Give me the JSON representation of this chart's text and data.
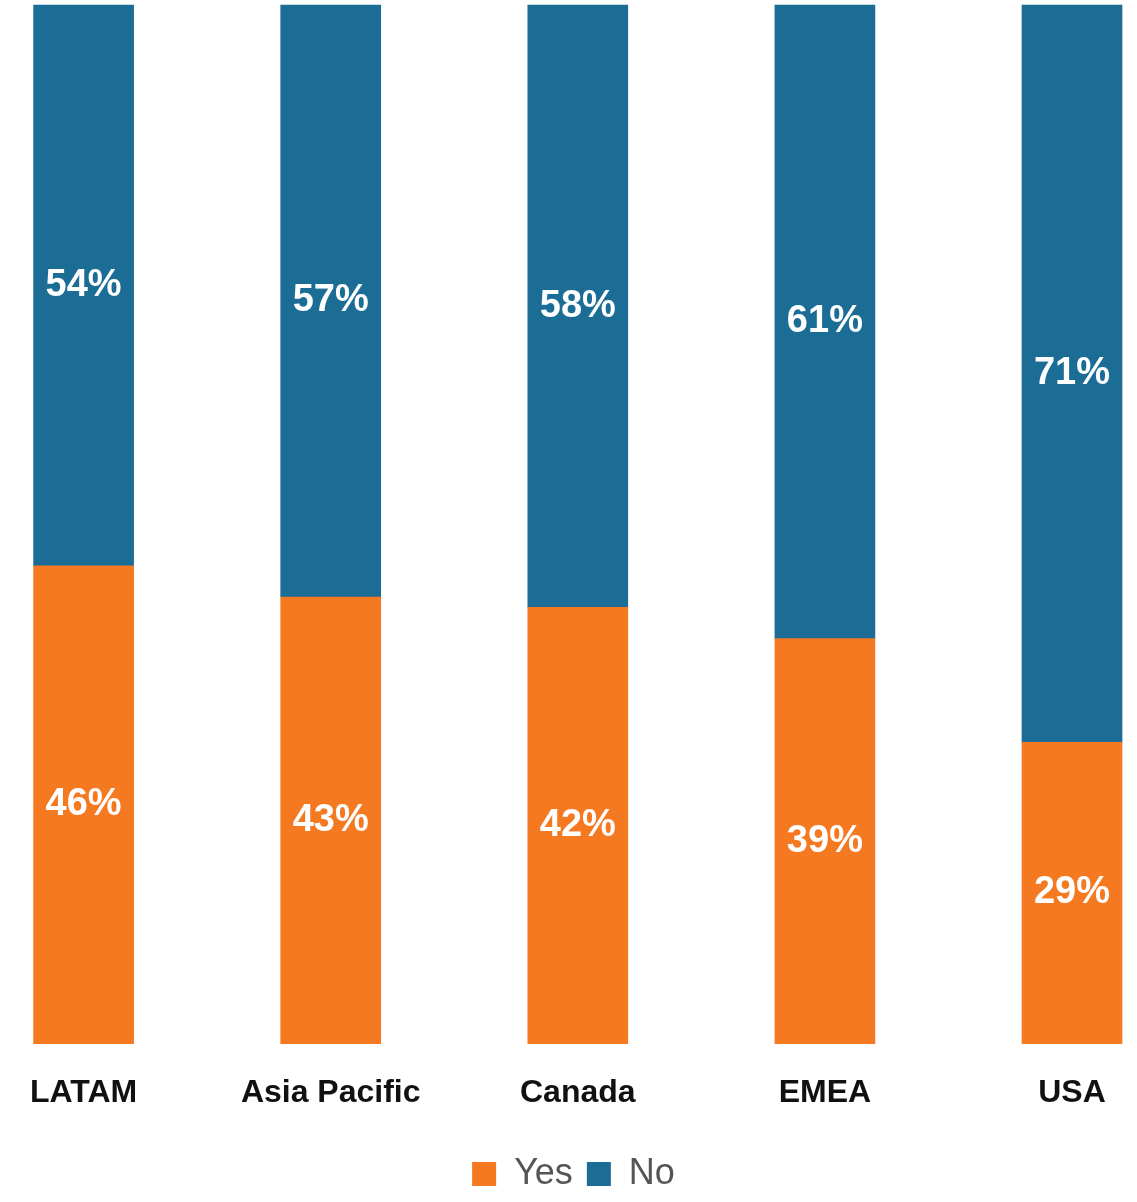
{
  "chart_data": {
    "type": "bar",
    "stacked": true,
    "categories": [
      "LATAM",
      "Asia Pacific",
      "Canada",
      "EMEA",
      "USA"
    ],
    "series": [
      {
        "name": "Yes",
        "color": "#f47920",
        "values": [
          46,
          43,
          42,
          39,
          29
        ],
        "value_labels": [
          "46%",
          "43%",
          "42%",
          "39%",
          "29%"
        ]
      },
      {
        "name": "No",
        "color": "#1b6d96",
        "values": [
          54,
          57,
          58,
          61,
          71
        ],
        "value_labels": [
          "54%",
          "57%",
          "58%",
          "61%",
          "71%"
        ]
      }
    ],
    "ylim": [
      0,
      100
    ],
    "tick_labels": "x",
    "grid": false,
    "legend": "bottom"
  }
}
